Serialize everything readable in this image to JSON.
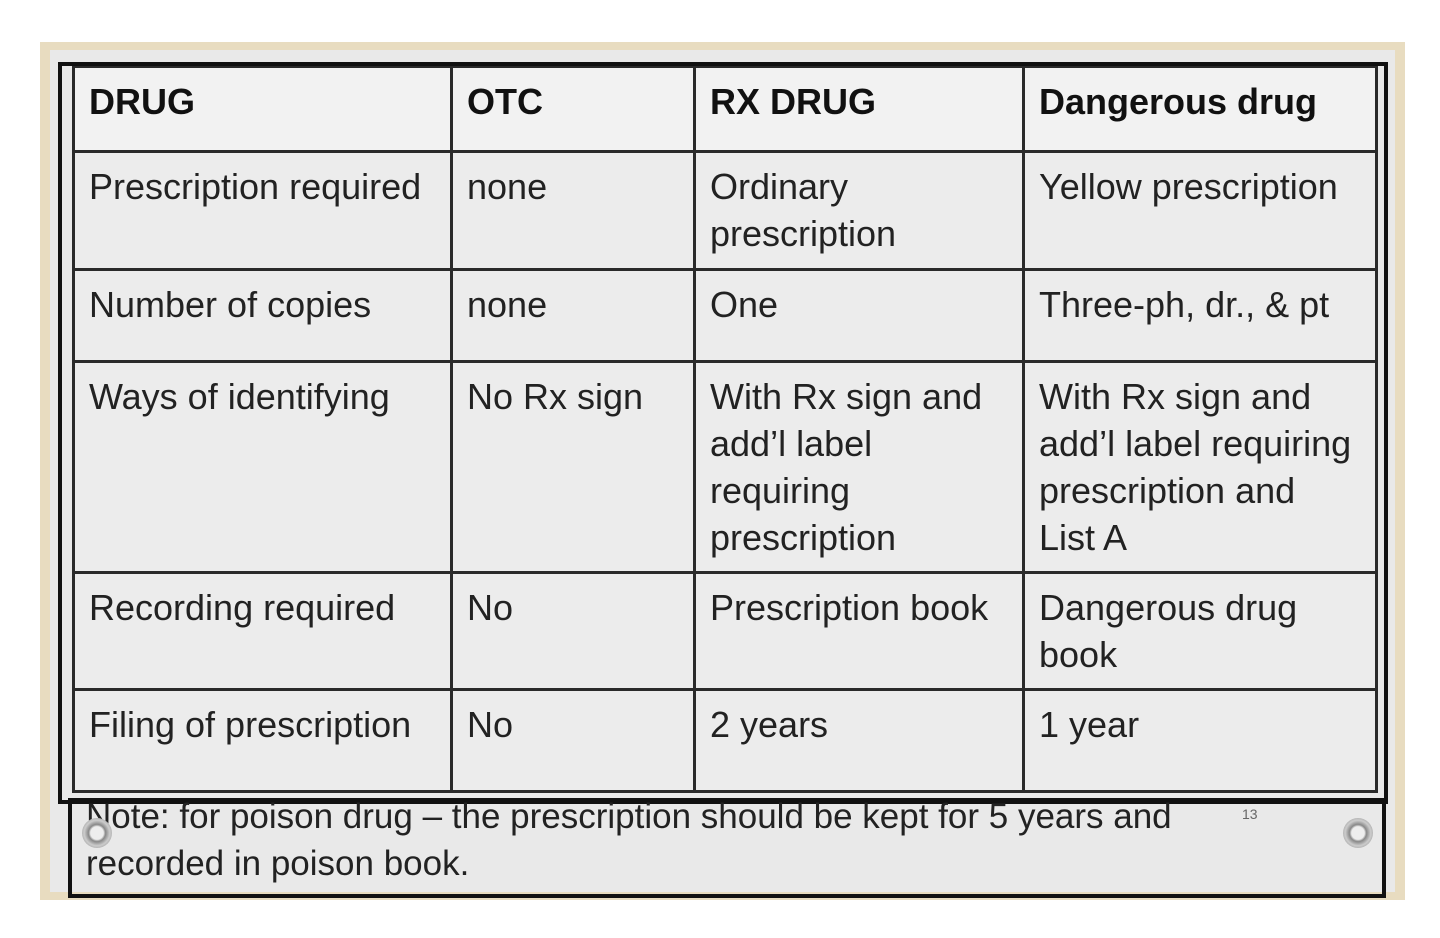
{
  "table": {
    "header": [
      "DRUG",
      "OTC",
      "RX DRUG",
      "Dangerous drug"
    ],
    "rows": [
      [
        "Prescription required",
        "none",
        "Ordinary prescription",
        "Yellow prescription"
      ],
      [
        "Number of copies",
        "none",
        "One",
        "Three-ph, dr., & pt"
      ],
      [
        "Ways of identifying",
        "No Rx sign",
        "With Rx sign and add’l label requiring prescription",
        "With Rx sign and add’l label requiring prescription and List A"
      ],
      [
        "Recording required",
        "No",
        "Prescription book",
        "Dangerous drug book"
      ],
      [
        "Filing of prescription",
        "No",
        "2 years",
        "1 year"
      ]
    ]
  },
  "note": "Note: for poison drug – the prescription should be kept for 5 years and recorded in poison book.",
  "page_number": "13"
}
